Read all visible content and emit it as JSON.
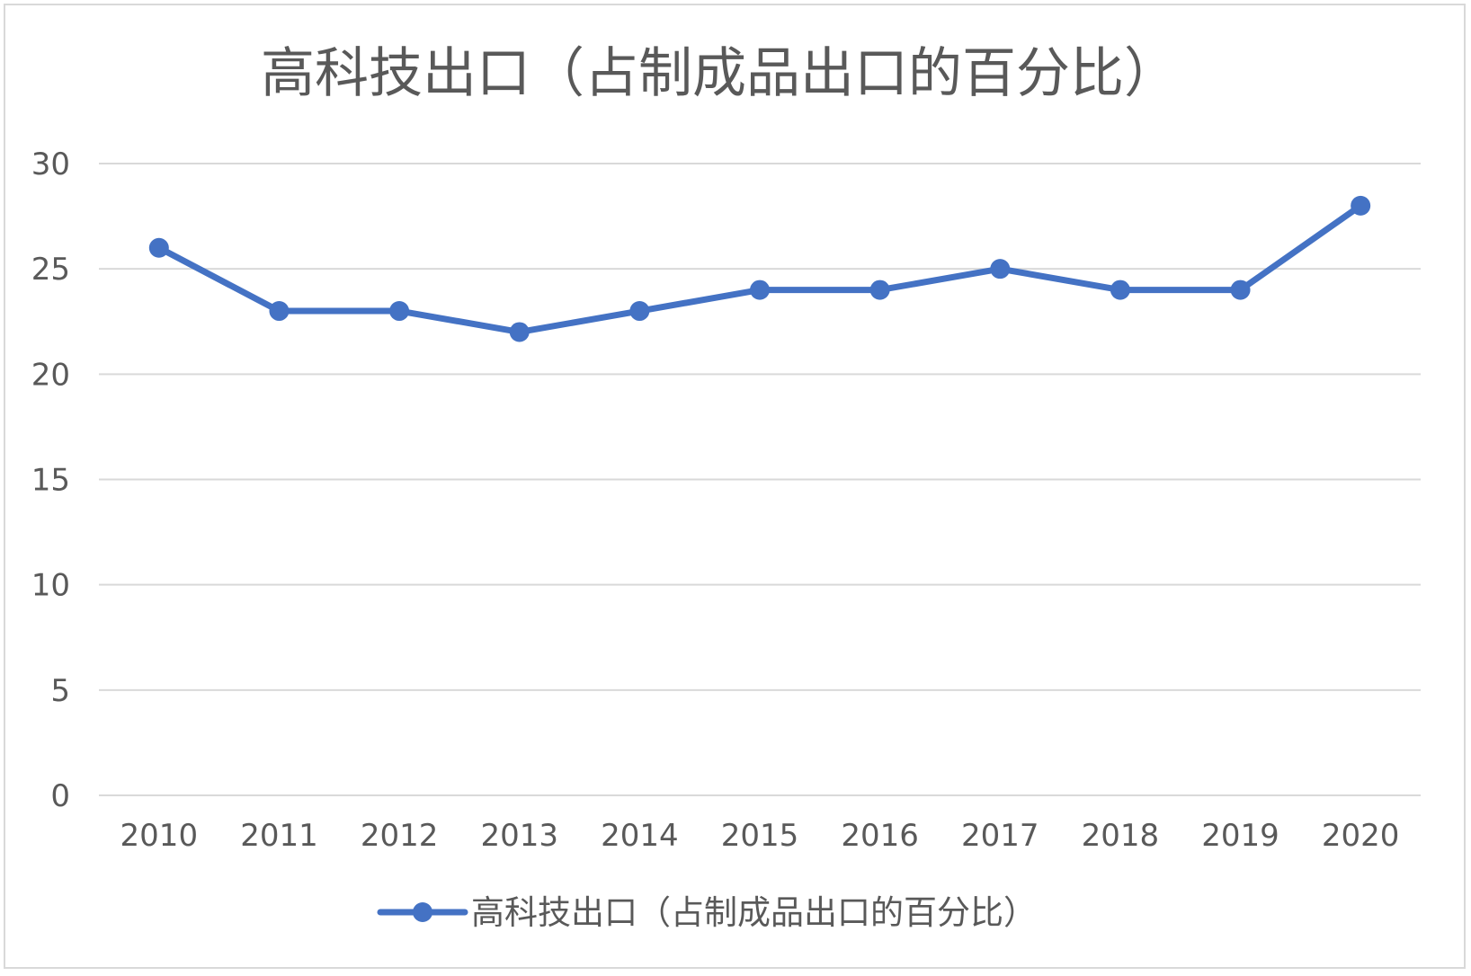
{
  "chart_data": {
    "type": "line",
    "title": "高科技出口（占制成品出口的百分比）",
    "xlabel": "",
    "ylabel": "",
    "categories": [
      "2010",
      "2011",
      "2012",
      "2013",
      "2014",
      "2015",
      "2016",
      "2017",
      "2018",
      "2019",
      "2020"
    ],
    "series": [
      {
        "name": "高科技出口（占制成品出口的百分比）",
        "values": [
          26,
          23,
          23,
          22,
          23,
          24,
          24,
          25,
          24,
          24,
          28
        ]
      }
    ],
    "ylim": [
      0,
      30
    ],
    "yticks": [
      "0",
      "5",
      "10",
      "15",
      "20",
      "25",
      "30"
    ],
    "grid": true,
    "legend_position": "bottom",
    "colors": {
      "series": "#4472c4",
      "grid": "#d9d9d9",
      "text": "#595959",
      "border": "#d9d9d9"
    },
    "marker": "circle"
  }
}
